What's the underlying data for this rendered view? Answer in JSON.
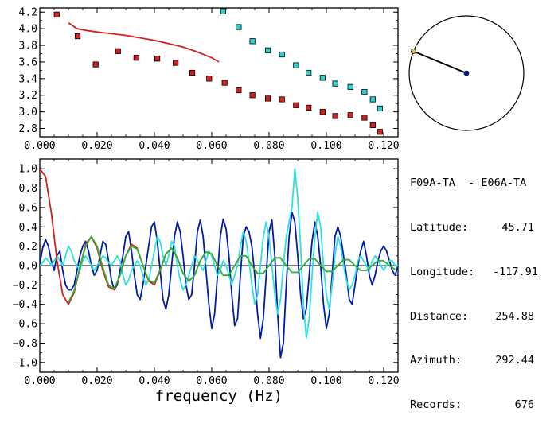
{
  "chart_data": [
    {
      "type": "scatter",
      "xlim": [
        0.0,
        0.125
      ],
      "ylim": [
        2.7,
        4.25
      ],
      "x_ticks": [
        "0.000",
        "0.020",
        "0.040",
        "0.060",
        "0.080",
        "0.100",
        "0.120"
      ],
      "y_ticks": [
        "2.8",
        "3.0",
        "3.2",
        "3.4",
        "3.6",
        "3.8",
        "4.0",
        "4.2"
      ],
      "series": [
        {
          "marker": "square",
          "color": "#d42020",
          "x": [
            0.0059,
            0.0132,
            0.0195,
            0.0273,
            0.0337,
            0.041,
            0.0474,
            0.0532,
            0.0591,
            0.0645,
            0.0694,
            0.0742,
            0.0796,
            0.0845,
            0.0894,
            0.0938,
            0.0987,
            0.1031,
            0.1084,
            0.1133,
            0.1162,
            0.1187
          ],
          "y": [
            4.17,
            3.91,
            3.57,
            3.73,
            3.65,
            3.64,
            3.59,
            3.47,
            3.4,
            3.35,
            3.26,
            3.2,
            3.16,
            3.15,
            3.08,
            3.05,
            3.0,
            2.95,
            2.96,
            2.93,
            2.84,
            2.76
          ]
        },
        {
          "marker": "square",
          "color": "#30d0d0",
          "x": [
            0.064,
            0.0694,
            0.0742,
            0.0796,
            0.0845,
            0.0894,
            0.0938,
            0.0987,
            0.1031,
            0.1084,
            0.1133,
            0.1162,
            0.1187
          ],
          "y": [
            4.21,
            4.02,
            3.85,
            3.74,
            3.69,
            3.56,
            3.47,
            3.41,
            3.34,
            3.3,
            3.24,
            3.15,
            3.04
          ]
        },
        {
          "type": "line",
          "color": "#d42020",
          "x": [
            0.01,
            0.013,
            0.016,
            0.02,
            0.025,
            0.03,
            0.035,
            0.04,
            0.045,
            0.05,
            0.055,
            0.06,
            0.0625
          ],
          "y": [
            4.07,
            4.0,
            3.98,
            3.96,
            3.94,
            3.92,
            3.89,
            3.86,
            3.82,
            3.78,
            3.72,
            3.65,
            3.6
          ]
        }
      ]
    },
    {
      "type": "line",
      "xlim": [
        0.0,
        0.125
      ],
      "ylim": [
        -1.1,
        1.1
      ],
      "xlabel": "frequency (Hz)",
      "x_ticks": [
        "0.000",
        "0.020",
        "0.040",
        "0.060",
        "0.080",
        "0.100",
        "0.120"
      ],
      "y_ticks": [
        "1.0",
        "0.8",
        "0.6",
        "0.4",
        "0.2",
        "0.0",
        "−0.2",
        "−0.4",
        "−0.6",
        "−0.8",
        "−1.0"
      ],
      "zero_line": true,
      "series": [
        {
          "color": "#001ca8",
          "x": [
            0.0,
            0.001,
            0.002,
            0.003,
            0.004,
            0.005,
            0.006,
            0.007,
            0.008,
            0.009,
            0.01,
            0.011,
            0.012,
            0.013,
            0.014,
            0.015,
            0.016,
            0.017,
            0.018,
            0.019,
            0.02,
            0.021,
            0.022,
            0.023,
            0.024,
            0.025,
            0.026,
            0.027,
            0.028,
            0.029,
            0.03,
            0.031,
            0.032,
            0.033,
            0.034,
            0.035,
            0.036,
            0.037,
            0.038,
            0.039,
            0.04,
            0.041,
            0.042,
            0.043,
            0.044,
            0.045,
            0.046,
            0.047,
            0.048,
            0.049,
            0.05,
            0.051,
            0.052,
            0.053,
            0.054,
            0.055,
            0.056,
            0.057,
            0.058,
            0.059,
            0.06,
            0.061,
            0.062,
            0.063,
            0.064,
            0.065,
            0.066,
            0.067,
            0.068,
            0.069,
            0.07,
            0.071,
            0.072,
            0.073,
            0.074,
            0.075,
            0.076,
            0.077,
            0.078,
            0.079,
            0.08,
            0.081,
            0.082,
            0.083,
            0.084,
            0.085,
            0.086,
            0.087,
            0.088,
            0.089,
            0.09,
            0.091,
            0.092,
            0.093,
            0.094,
            0.095,
            0.096,
            0.097,
            0.098,
            0.099,
            0.1,
            0.101,
            0.102,
            0.103,
            0.104,
            0.105,
            0.106,
            0.107,
            0.108,
            0.109,
            0.11,
            0.111,
            0.112,
            0.113,
            0.114,
            0.115,
            0.116,
            0.117,
            0.118,
            0.119,
            0.12,
            0.121,
            0.122,
            0.123,
            0.124,
            0.125
          ],
          "y": [
            0.02,
            0.18,
            0.27,
            0.2,
            0.05,
            -0.05,
            0.1,
            0.15,
            -0.05,
            -0.2,
            -0.25,
            -0.25,
            -0.2,
            -0.05,
            0.1,
            0.2,
            0.25,
            0.15,
            0.0,
            -0.1,
            -0.05,
            0.1,
            0.25,
            0.22,
            0.05,
            -0.15,
            -0.25,
            -0.2,
            -0.05,
            0.1,
            0.3,
            0.35,
            0.15,
            -0.1,
            -0.3,
            -0.35,
            -0.2,
            0.0,
            0.2,
            0.4,
            0.45,
            0.25,
            -0.05,
            -0.35,
            -0.45,
            -0.3,
            0.0,
            0.3,
            0.45,
            0.35,
            0.1,
            -0.2,
            -0.35,
            -0.3,
            0.0,
            0.35,
            0.47,
            0.3,
            -0.05,
            -0.4,
            -0.65,
            -0.5,
            -0.1,
            0.3,
            0.48,
            0.38,
            0.1,
            -0.3,
            -0.62,
            -0.55,
            -0.1,
            0.3,
            0.4,
            0.35,
            0.2,
            -0.1,
            -0.5,
            -0.75,
            -0.55,
            -0.1,
            0.35,
            0.47,
            0.1,
            -0.5,
            -0.95,
            -0.8,
            -0.2,
            0.3,
            0.55,
            0.45,
            0.1,
            -0.3,
            -0.55,
            -0.45,
            -0.1,
            0.25,
            0.45,
            0.3,
            0.0,
            -0.4,
            -0.65,
            -0.5,
            -0.1,
            0.3,
            0.4,
            0.3,
            0.1,
            -0.1,
            -0.35,
            -0.4,
            -0.2,
            0.0,
            0.15,
            0.25,
            0.1,
            -0.1,
            -0.2,
            -0.1,
            0.05,
            0.15,
            0.2,
            0.15,
            0.05,
            -0.05,
            -0.1,
            0.0
          ]
        },
        {
          "color": "#30e0e0",
          "x": [
            0.0,
            0.001,
            0.002,
            0.003,
            0.004,
            0.005,
            0.006,
            0.007,
            0.008,
            0.009,
            0.01,
            0.011,
            0.012,
            0.013,
            0.014,
            0.015,
            0.016,
            0.017,
            0.018,
            0.019,
            0.02,
            0.021,
            0.022,
            0.023,
            0.024,
            0.025,
            0.026,
            0.027,
            0.028,
            0.029,
            0.03,
            0.031,
            0.032,
            0.033,
            0.034,
            0.035,
            0.036,
            0.037,
            0.038,
            0.039,
            0.04,
            0.041,
            0.042,
            0.043,
            0.044,
            0.045,
            0.046,
            0.047,
            0.048,
            0.049,
            0.05,
            0.051,
            0.052,
            0.053,
            0.054,
            0.055,
            0.056,
            0.057,
            0.058,
            0.059,
            0.06,
            0.061,
            0.062,
            0.063,
            0.064,
            0.065,
            0.066,
            0.067,
            0.068,
            0.069,
            0.07,
            0.071,
            0.072,
            0.073,
            0.074,
            0.075,
            0.076,
            0.077,
            0.078,
            0.079,
            0.08,
            0.081,
            0.082,
            0.083,
            0.084,
            0.085,
            0.086,
            0.087,
            0.088,
            0.089,
            0.09,
            0.091,
            0.092,
            0.093,
            0.094,
            0.095,
            0.096,
            0.097,
            0.098,
            0.099,
            0.1,
            0.101,
            0.102,
            0.103,
            0.104,
            0.105,
            0.106,
            0.107,
            0.108,
            0.109,
            0.11,
            0.111,
            0.112,
            0.113,
            0.114,
            0.115,
            0.116,
            0.117,
            0.118,
            0.119,
            0.12,
            0.121,
            0.122,
            0.123,
            0.124,
            0.125
          ],
          "y": [
            0.0,
            0.03,
            0.08,
            0.05,
            0.0,
            0.05,
            0.1,
            0.05,
            0.0,
            0.1,
            0.2,
            0.15,
            0.05,
            0.0,
            -0.05,
            0.05,
            0.1,
            0.05,
            0.0,
            -0.05,
            0.0,
            0.05,
            0.1,
            0.08,
            0.03,
            0.0,
            0.05,
            0.1,
            0.05,
            -0.1,
            -0.2,
            -0.15,
            -0.05,
            0.0,
            0.05,
            0.0,
            -0.1,
            -0.2,
            -0.15,
            0.0,
            0.15,
            0.3,
            0.25,
            0.1,
            0.0,
            0.1,
            0.25,
            0.2,
            0.0,
            -0.15,
            -0.25,
            -0.2,
            -0.1,
            0.0,
            0.1,
            0.05,
            0.0,
            -0.05,
            0.05,
            0.15,
            0.1,
            0.0,
            -0.1,
            -0.05,
            0.05,
            0.0,
            -0.1,
            -0.2,
            -0.1,
            0.0,
            0.2,
            0.35,
            0.25,
            0.05,
            -0.2,
            -0.4,
            -0.3,
            0.0,
            0.3,
            0.45,
            0.3,
            0.0,
            -0.3,
            -0.5,
            -0.35,
            0.0,
            0.3,
            0.45,
            0.6,
            1.0,
            0.7,
            0.2,
            -0.4,
            -0.75,
            -0.55,
            -0.1,
            0.3,
            0.55,
            0.4,
            0.0,
            -0.3,
            -0.45,
            -0.2,
            0.1,
            0.3,
            0.2,
            0.0,
            -0.15,
            -0.25,
            -0.2,
            -0.1,
            0.05,
            0.1,
            0.05,
            0.0,
            -0.05,
            0.05,
            0.1,
            0.05,
            0.0,
            -0.05,
            0.0,
            0.05,
            0.05,
            0.0,
            0.0
          ]
        },
        {
          "color": "#d42020",
          "x": [
            0.0,
            0.002,
            0.004,
            0.006,
            0.008,
            0.01,
            0.012,
            0.014,
            0.016,
            0.018,
            0.02,
            0.022,
            0.024,
            0.026,
            0.028,
            0.03,
            0.032,
            0.034,
            0.036,
            0.038,
            0.04,
            0.042,
            0.044,
            0.046,
            0.048,
            0.05,
            0.052,
            0.054,
            0.056,
            0.058,
            0.06,
            0.062,
            0.063
          ],
          "y": [
            1.0,
            0.92,
            0.55,
            0.05,
            -0.3,
            -0.4,
            -0.28,
            -0.02,
            0.22,
            0.3,
            0.18,
            -0.05,
            -0.22,
            -0.25,
            -0.1,
            0.1,
            0.22,
            0.18,
            0.0,
            -0.16,
            -0.2,
            -0.05,
            0.12,
            0.18,
            0.08,
            -0.08,
            -0.16,
            -0.1,
            0.05,
            0.14,
            0.12,
            0.0,
            -0.05
          ]
        },
        {
          "color": "#30b030",
          "x": [
            0.01,
            0.012,
            0.014,
            0.016,
            0.018,
            0.02,
            0.022,
            0.024,
            0.026,
            0.028,
            0.03,
            0.032,
            0.034,
            0.036,
            0.038,
            0.04,
            0.042,
            0.044,
            0.046,
            0.048,
            0.05,
            0.052,
            0.054,
            0.056,
            0.058,
            0.06,
            0.062,
            0.064,
            0.066,
            0.068,
            0.07,
            0.072,
            0.074,
            0.076,
            0.078,
            0.08,
            0.082,
            0.084,
            0.086,
            0.088,
            0.09,
            0.092,
            0.094,
            0.096,
            0.098,
            0.1,
            0.102,
            0.104,
            0.106,
            0.108,
            0.11,
            0.112,
            0.114,
            0.116,
            0.118,
            0.12,
            0.122,
            0.124
          ],
          "y": [
            -0.38,
            -0.26,
            -0.02,
            0.2,
            0.3,
            0.2,
            -0.02,
            -0.2,
            -0.24,
            -0.1,
            0.1,
            0.2,
            0.17,
            0.0,
            -0.15,
            -0.18,
            -0.04,
            0.12,
            0.18,
            0.08,
            -0.08,
            -0.16,
            -0.1,
            0.05,
            0.14,
            0.12,
            0.0,
            -0.1,
            -0.1,
            0.0,
            0.1,
            0.1,
            0.0,
            -0.08,
            -0.08,
            0.0,
            0.08,
            0.08,
            0.0,
            -0.07,
            -0.07,
            0.0,
            0.07,
            0.07,
            0.0,
            -0.06,
            -0.06,
            0.0,
            0.06,
            0.06,
            0.0,
            -0.05,
            -0.05,
            0.0,
            0.05,
            0.05,
            0.0,
            -0.04
          ]
        }
      ]
    },
    {
      "type": "diagram",
      "center_marker_color": "#001ca8",
      "end_marker_color": "#e0c040",
      "azimuth_deg": 292.44
    }
  ],
  "info": {
    "stations": "F09A-TA  - E06A-TA",
    "rows": [
      {
        "label": "Latitude:",
        "value": "45.71"
      },
      {
        "label": "Longitude:",
        "value": "-117.91"
      },
      {
        "label": "Distance:",
        "value": "254.88"
      },
      {
        "label": "Azimuth:",
        "value": "292.44"
      },
      {
        "label": "Records:",
        "value": "676"
      }
    ]
  }
}
